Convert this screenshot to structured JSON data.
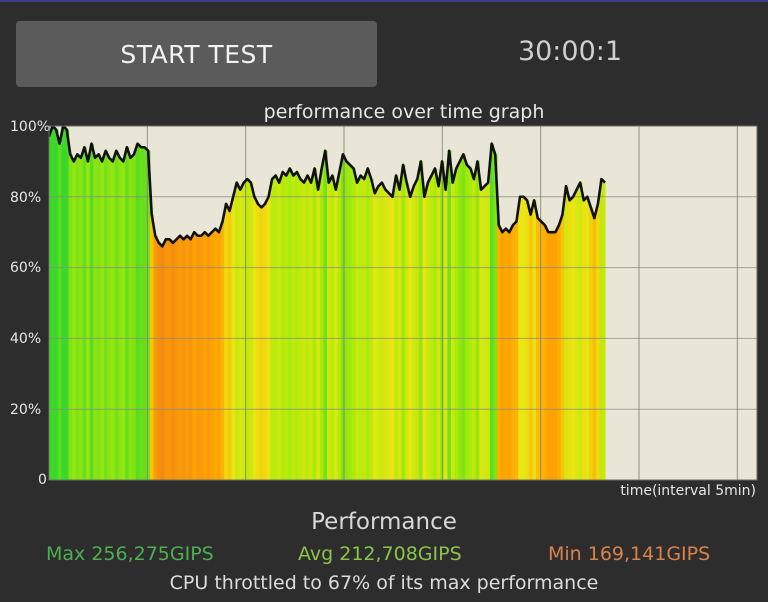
{
  "header": {
    "start_button_label": "START TEST",
    "timer": "30:00:1"
  },
  "chart_data": {
    "type": "area",
    "title": "performance over time graph",
    "xlabel": "time(interval 5min)",
    "ylabel": "",
    "yticks": [
      "100%",
      "80%",
      "60%",
      "40%",
      "20%",
      "0"
    ],
    "ylim": [
      0,
      100
    ],
    "x_interval_min": 5,
    "x_total_min": 36,
    "grid": true,
    "series": [
      {
        "values": [
          97,
          100,
          99,
          95,
          100,
          99,
          92,
          90,
          92,
          91,
          94,
          90,
          95,
          91,
          92,
          90,
          93,
          91,
          90,
          93,
          91,
          90,
          94,
          91,
          92,
          95,
          94,
          94,
          93,
          75,
          69,
          67,
          66,
          68,
          68,
          67,
          68,
          69,
          68,
          69,
          68,
          70,
          69,
          69,
          70,
          69,
          70,
          71,
          70,
          73,
          78,
          76,
          80,
          84,
          82,
          84,
          85,
          84,
          80,
          78,
          77,
          78,
          80,
          85,
          86,
          84,
          87,
          86,
          88,
          86,
          87,
          85,
          84,
          86,
          84,
          88,
          82,
          88,
          93,
          84,
          86,
          82,
          87,
          92,
          90,
          89,
          88,
          84,
          86,
          85,
          88,
          85,
          81,
          83,
          84,
          82,
          81,
          80,
          86,
          82,
          89,
          84,
          80,
          83,
          85,
          90,
          80,
          84,
          86,
          88,
          83,
          90,
          82,
          93,
          84,
          88,
          90,
          92,
          89,
          88,
          85,
          90,
          82,
          83,
          84,
          95,
          92,
          72,
          70,
          71,
          70,
          72,
          73,
          80,
          80,
          79,
          75,
          79,
          74,
          73,
          72,
          70,
          70,
          70,
          72,
          75,
          83,
          79,
          80,
          82,
          84,
          79,
          80,
          77,
          74,
          78,
          85,
          84
        ]
      }
    ],
    "colors": {
      "max": "#4caf50",
      "avg": "#8bc34a",
      "min": "#d9824a",
      "plot_background": "#e9e6d8",
      "line": "#111111"
    }
  },
  "summary": {
    "heading": "Performance",
    "max": "Max 256,275GIPS",
    "avg": "Avg 212,708GIPS",
    "min": "Min 169,141GIPS",
    "throttle": "CPU throttled to 67% of its max performance"
  }
}
